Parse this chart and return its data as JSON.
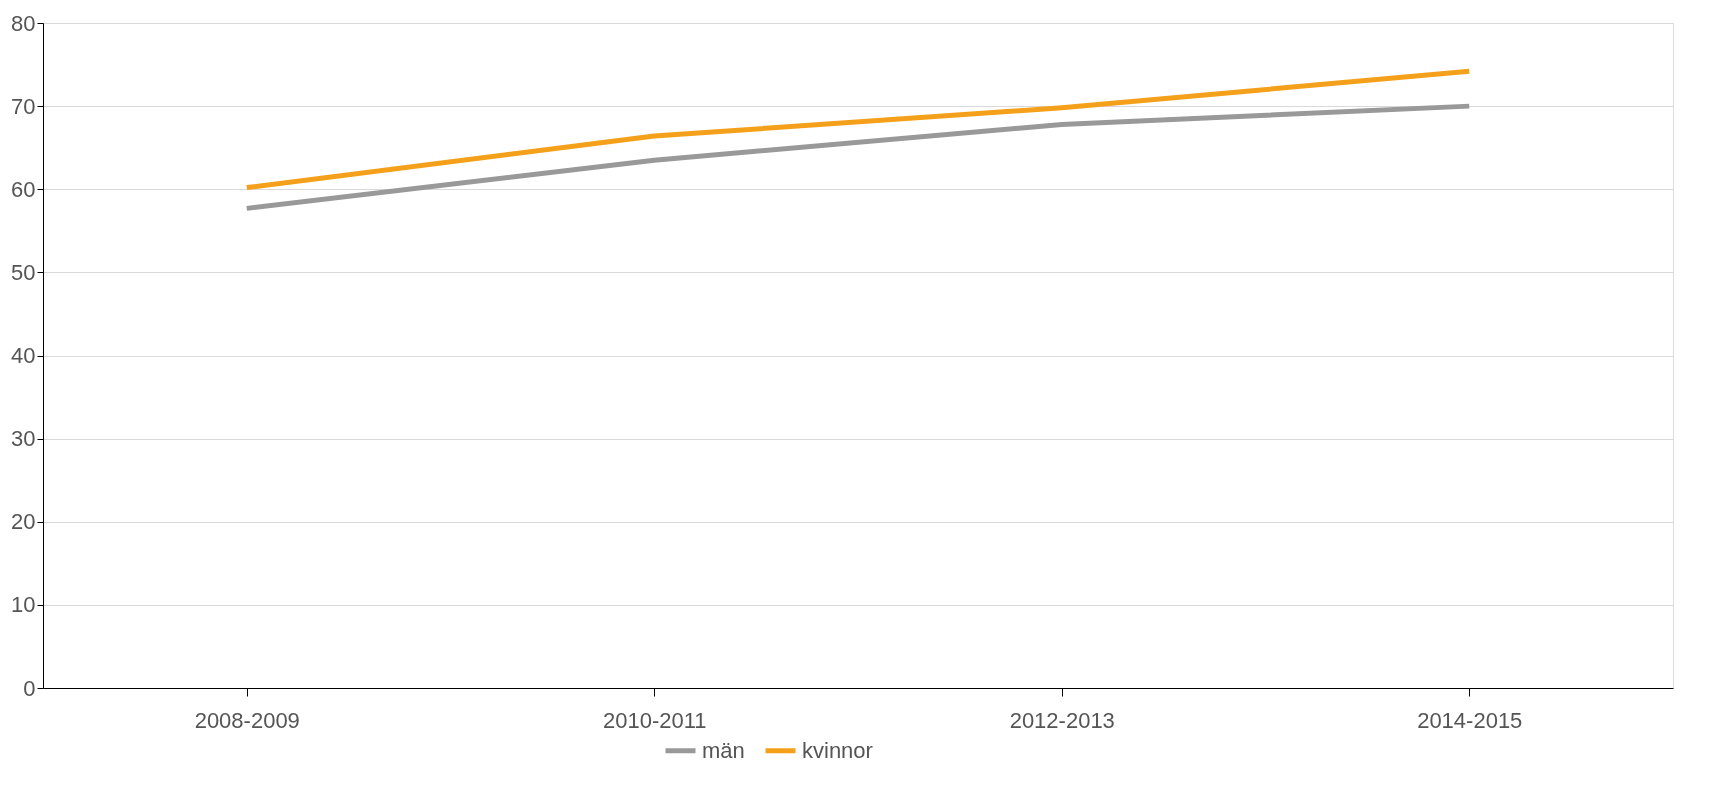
{
  "chart_data": {
    "type": "line",
    "categories": [
      "2008-2009",
      "2010-2011",
      "2012-2013",
      "2014-2015"
    ],
    "series": [
      {
        "name": "män",
        "color": "#999999",
        "values": [
          57.7,
          63.5,
          67.8,
          70.0
        ]
      },
      {
        "name": "kvinnor",
        "color": "#f5a01a",
        "values": [
          60.2,
          66.4,
          69.8,
          74.2
        ]
      }
    ],
    "ylim": [
      0,
      80
    ],
    "yticks": [
      0,
      10,
      20,
      30,
      40,
      50,
      60,
      70,
      80
    ],
    "grid": "y",
    "legend": "bottom",
    "marker": "none",
    "line_style": "solid"
  }
}
